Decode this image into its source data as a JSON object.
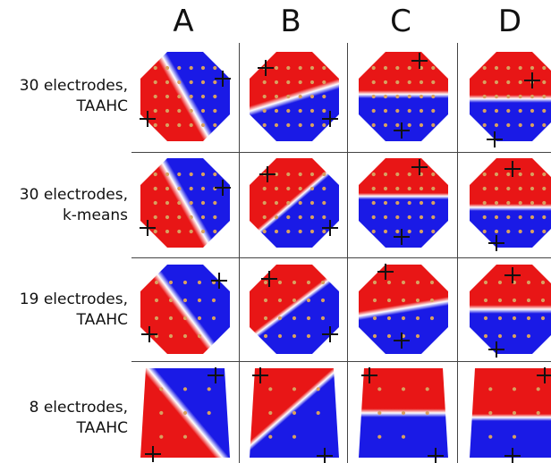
{
  "figure": {
    "columns": [
      "A",
      "B",
      "C",
      "D"
    ],
    "rows": [
      {
        "line1": "30 electrodes,",
        "line2": "TAAHC"
      },
      {
        "line1": "30 electrodes,",
        "line2": "k-means"
      },
      {
        "line1": "19 electrodes,",
        "line2": "TAAHC"
      },
      {
        "line1": "8 electrodes,",
        "line2": "TAAHC"
      }
    ]
  },
  "colors": {
    "positive": "#e81616",
    "negative": "#1a1ae6",
    "neutral": "#ffffff",
    "electrode": "#d8a060",
    "grid": "#444444"
  }
}
